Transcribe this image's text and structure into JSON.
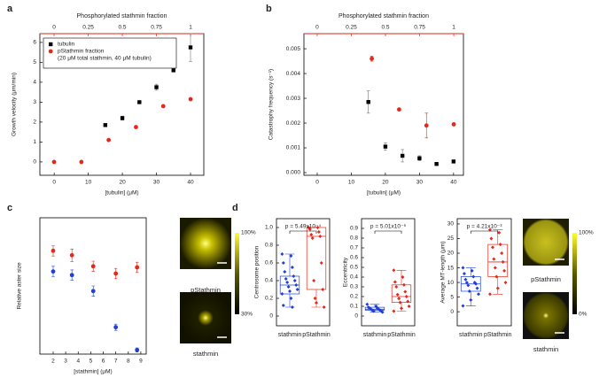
{
  "chart_data": [
    {
      "type": "scatter",
      "label": "a",
      "xlabel": "[tubulin] (μM)",
      "ylabel": "Growth velocity (μm/min)",
      "x2label": "Phosphorylated stathmin fraction",
      "xlim": [
        -4.2,
        43.9
      ],
      "xticks": [
        0,
        10,
        20,
        30,
        40
      ],
      "x2lim": [
        -0.104,
        1.097
      ],
      "x2ticks": [
        0,
        0.25,
        0.5,
        0.75,
        1
      ],
      "x2color": "#d9261c",
      "ylim": [
        -0.67,
        6.44
      ],
      "yticks": [
        0,
        1,
        2,
        3,
        4,
        5,
        6
      ],
      "legend": "upper left",
      "legend_note": "(20 μM total stathmin, 40 μM tubulin)",
      "series": [
        {
          "name": "tubulin",
          "color": "#000000",
          "marker": "square",
          "x": [
            15,
            20,
            25,
            30,
            35,
            40
          ],
          "values": [
            1.85,
            2.2,
            3.0,
            3.75,
            4.6,
            5.75
          ],
          "errors": [
            0.05,
            0.1,
            0.05,
            0.15,
            0.05,
            0.7
          ]
        },
        {
          "name": "pStathmin fraction",
          "color": "#e5281c",
          "marker": "circle",
          "xaxis": "x2",
          "x": [
            0,
            0.2,
            0.4,
            0.6,
            0.8,
            1
          ],
          "values": [
            0,
            0,
            1.1,
            1.75,
            2.8,
            3.15
          ],
          "errors": [
            null,
            null,
            null,
            null,
            null,
            null
          ]
        }
      ]
    },
    {
      "type": "scatter",
      "label": "b",
      "xlabel": "[tubulin] (μM)",
      "ylabel": "Catastrophy frequency (s⁻¹)",
      "x2label": "Phosphorylated stathmin fraction",
      "xlim": [
        -3.9,
        42.9
      ],
      "xticks": [
        0,
        10,
        20,
        30,
        40
      ],
      "x2lim": [
        -0.097,
        1.071
      ],
      "x2ticks": [
        0,
        0.25,
        0.5,
        0.75,
        1
      ],
      "x2color": "#d9261c",
      "ylim": [
        -0.000107,
        0.00561
      ],
      "yticks": [
        {
          "value": 0,
          "label": "0.000"
        },
        {
          "value": 0.001,
          "label": "0.001"
        },
        {
          "value": 0.002,
          "label": "0.002"
        },
        {
          "value": 0.003,
          "label": "0.003"
        },
        {
          "value": 0.004,
          "label": "0.004"
        },
        {
          "value": 0.005,
          "label": "0.005"
        }
      ],
      "series": [
        {
          "color": "#000000",
          "marker": "square",
          "x": [
            15,
            20,
            25,
            30,
            35,
            40
          ],
          "values": [
            0.00285,
            0.00105,
            0.00068,
            0.00058,
            0.00035,
            0.00045
          ],
          "errors": [
            0.00045,
            0.00015,
            0.00025,
            0.0001,
            3e-05,
            3e-05
          ]
        },
        {
          "color": "#e5281c",
          "marker": "circle",
          "xaxis": "x2",
          "x": [
            0.4,
            0.6,
            0.8,
            1
          ],
          "values": [
            0.0046,
            0.00255,
            0.0019,
            0.00195
          ],
          "errors": [
            0.0001,
            5e-05,
            0.0005,
            3e-05
          ]
        }
      ]
    },
    {
      "type": "scatter",
      "label": "c",
      "xlabel": "[stathmin] (μM)",
      "ylabel": "Relative aster size",
      "xlim": [
        0.94,
        9.43
      ],
      "xticks": [
        2,
        3,
        4,
        5,
        6,
        7,
        8,
        9
      ],
      "ylim": [
        0,
        1.32
      ],
      "series": [
        {
          "color": "#e5281c",
          "marker": "circle",
          "x": [
            2,
            3.5,
            5.2,
            7,
            8.7
          ],
          "values": [
            1.0,
            0.957,
            0.85,
            0.78,
            0.84
          ],
          "errors": [
            0.05,
            0.06,
            0.05,
            0.05,
            0.05
          ]
        },
        {
          "color": "#1f3fd8",
          "marker": "circle",
          "x": [
            2,
            3.5,
            5.2,
            7,
            8.7
          ],
          "values": [
            0.8,
            0.765,
            0.61,
            0.26,
            0.04
          ],
          "errors": [
            0.05,
            0.05,
            0.05,
            0.03,
            0.02
          ]
        }
      ],
      "images": {
        "top_label": "pStathmin",
        "bottom_label": "stathmin",
        "colorbar_max": "100%",
        "colorbar_min": "30%"
      }
    },
    {
      "type": "box",
      "label": "d",
      "ylabel": "Centrosome position",
      "ylim": [
        -0.11,
        1.1
      ],
      "yticks": [
        0,
        0.2,
        0.4,
        0.6,
        0.8,
        {
          "value": 1.0,
          "label": "1.0"
        }
      ],
      "categories": [
        "stathmin",
        "pStathmin"
      ],
      "annotation": "p = 5.49x10⁻⁴",
      "series": [
        {
          "color": "#1f3fd8",
          "min": 0.1,
          "q1": 0.25,
          "median": 0.35,
          "q3": 0.45,
          "max": 0.7,
          "points": [
            0.7,
            0.68,
            0.6,
            0.55,
            0.5,
            0.45,
            0.42,
            0.4,
            0.38,
            0.35,
            0.33,
            0.3,
            0.28,
            0.25,
            0.2,
            0.12,
            0.1
          ]
        },
        {
          "color": "#e5281c",
          "min": 0.1,
          "q1": 0.3,
          "median": 0.9,
          "q3": 1.0,
          "max": 1.0,
          "points": [
            1.0,
            1.0,
            0.98,
            0.95,
            0.92,
            0.9,
            0.88,
            0.6,
            0.4,
            0.3,
            0.2,
            0.1,
            0.15
          ]
        }
      ]
    },
    {
      "type": "box",
      "ylabel": "Eccentricity",
      "ylim": [
        -0.1,
        1.0
      ],
      "yticks": [
        0,
        0.1,
        0.2,
        0.3,
        0.4,
        0.5,
        0.6,
        0.7,
        0.8,
        0.9
      ],
      "categories": [
        "stathmin",
        "pStathmin"
      ],
      "annotation": "p = 5.01x10⁻⁶",
      "series": [
        {
          "color": "#1f3fd8",
          "min": 0.04,
          "q1": 0.06,
          "median": 0.07,
          "q3": 0.09,
          "max": 0.12,
          "points": [
            0.12,
            0.1,
            0.09,
            0.08,
            0.08,
            0.07,
            0.07,
            0.06,
            0.06,
            0.05,
            0.05,
            0.04
          ]
        },
        {
          "color": "#e5281c",
          "min": 0.05,
          "q1": 0.14,
          "median": 0.2,
          "q3": 0.32,
          "max": 0.47,
          "points": [
            0.47,
            0.4,
            0.35,
            0.32,
            0.3,
            0.25,
            0.22,
            0.2,
            0.18,
            0.15,
            0.14,
            0.1,
            0.08,
            0.05
          ]
        }
      ]
    },
    {
      "type": "box",
      "ylabel": "Average MT-length (μm)",
      "ylim": [
        -4.8,
        31.8
      ],
      "yticks": [
        0,
        5,
        10,
        15,
        20,
        25,
        30
      ],
      "categories": [
        "stathmin",
        "pStathmin"
      ],
      "annotation": "p = 4.21x10⁻³",
      "series": [
        {
          "color": "#1f3fd8",
          "min": 2,
          "q1": 7,
          "median": 9.5,
          "q3": 12,
          "max": 15,
          "points": [
            15,
            14,
            13,
            12,
            11,
            10,
            10,
            9.5,
            9,
            8,
            7,
            6,
            4,
            2
          ]
        },
        {
          "color": "#e5281c",
          "min": 6,
          "q1": 12,
          "median": 17,
          "q3": 23,
          "max": 28,
          "points": [
            28,
            27,
            25,
            23,
            22,
            20,
            18,
            17,
            15,
            14,
            12,
            10,
            8,
            6
          ]
        }
      ],
      "images": {
        "top_label": "pStathmin",
        "bottom_label": "stathmin",
        "colorbar_max": "100%",
        "colorbar_min": "0%"
      }
    }
  ]
}
